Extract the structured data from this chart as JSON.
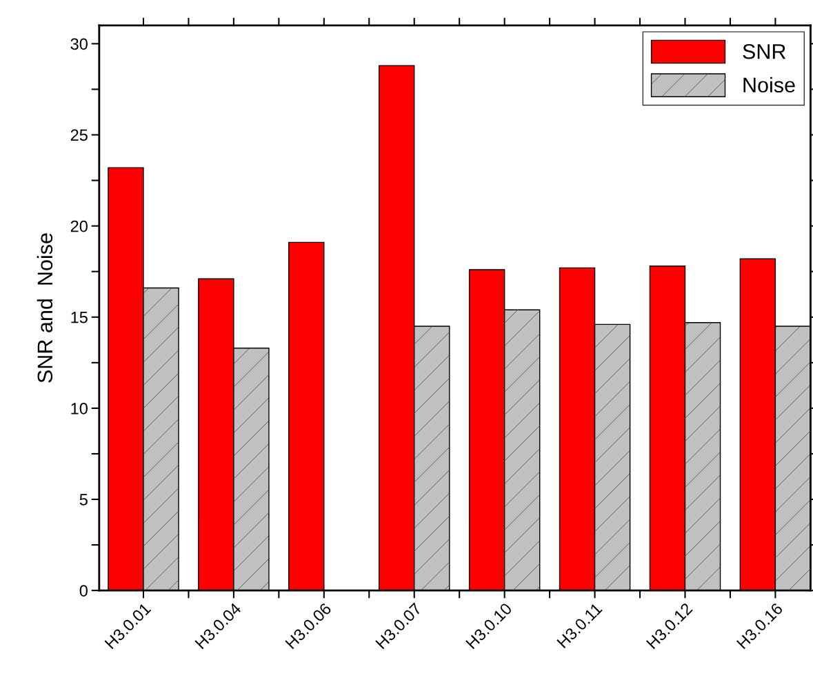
{
  "chart_data": {
    "type": "bar",
    "ylabel": "SNR and  Noise",
    "categories": [
      "H3.0.01",
      "H3.0.04",
      "H3.0.06",
      "H3.0.07",
      "H3.0.10",
      "H3.0.11",
      "H3.0.12",
      "H3.0.16"
    ],
    "series": [
      {
        "name": "SNR",
        "color": "#ff0000",
        "values": [
          23.2,
          17.1,
          19.1,
          28.8,
          17.6,
          17.7,
          17.8,
          18.2
        ]
      },
      {
        "name": "Noise",
        "color": "#c0c0c0",
        "values": [
          16.6,
          13.3,
          null,
          14.5,
          15.4,
          14.6,
          14.7,
          14.5
        ]
      }
    ],
    "ylim": [
      0,
      31
    ],
    "yticks": [
      0,
      {
        "value": 2.5,
        "label": null
      },
      5,
      {
        "value": 7.5,
        "label": null
      },
      10,
      {
        "value": 12.5,
        "label": null
      },
      15,
      {
        "value": 17.5,
        "label": null
      },
      20,
      {
        "value": 22.5,
        "label": null
      },
      25,
      {
        "value": 27.5,
        "label": null
      },
      30
    ],
    "legend": "top right",
    "grid": false
  }
}
